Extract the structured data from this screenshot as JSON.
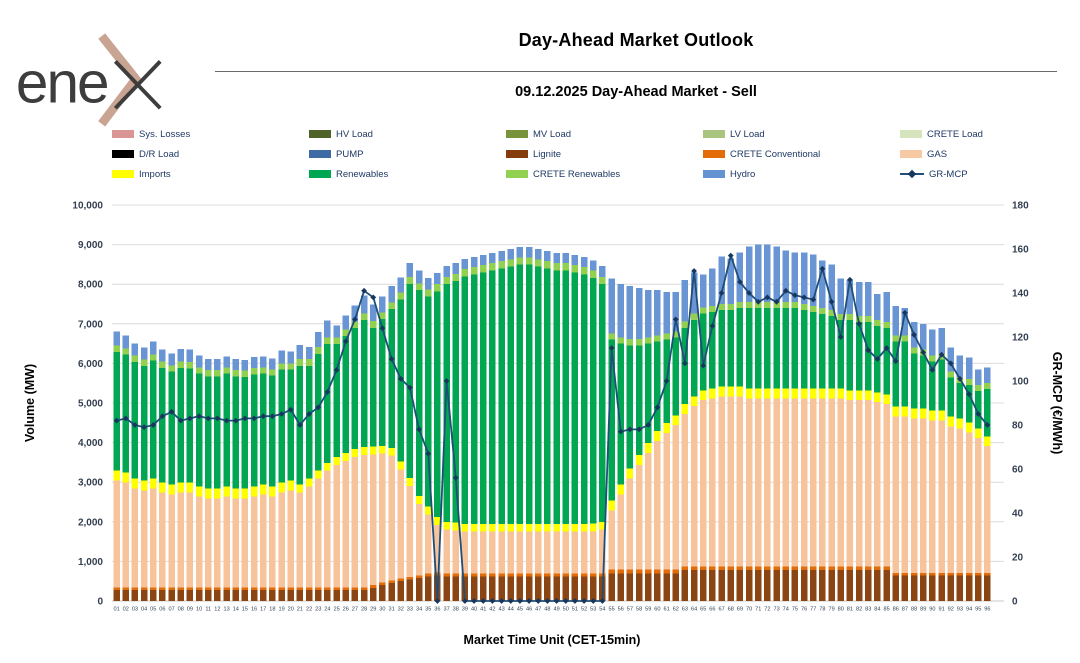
{
  "header": {
    "logo_text": "ene",
    "title": "Day-Ahead Market Outlook",
    "subtitle": "09.12.2025  Day-Ahead Market - Sell"
  },
  "legend": {
    "items": [
      {
        "label": "Sys. Losses",
        "color": "#D99694",
        "type": "box"
      },
      {
        "label": "HV Load",
        "color": "#4F6228",
        "type": "box"
      },
      {
        "label": "MV Load",
        "color": "#77933C",
        "type": "box"
      },
      {
        "label": "LV Load",
        "color": "#A9C47F",
        "type": "box"
      },
      {
        "label": "CRETE Load",
        "color": "#D6E4BD",
        "type": "box"
      },
      {
        "label": "D/R Load",
        "color": "#000000",
        "type": "box"
      },
      {
        "label": "PUMP",
        "color": "#3E6AA5",
        "type": "box"
      },
      {
        "label": "Lignite",
        "color": "#843C0C",
        "type": "box"
      },
      {
        "label": "CRETE Conventional",
        "color": "#E36C09",
        "type": "box"
      },
      {
        "label": "GAS",
        "color": "#F7C9A3",
        "type": "box"
      },
      {
        "label": "Imports",
        "color": "#FFFF00",
        "type": "box"
      },
      {
        "label": "Renewables",
        "color": "#00A651",
        "type": "box"
      },
      {
        "label": "CRETE Renewables",
        "color": "#92D050",
        "type": "box"
      },
      {
        "label": "Hydro",
        "color": "#6493D1",
        "type": "box"
      },
      {
        "label": "GR-MCP",
        "color": "#1F4E79",
        "type": "line"
      }
    ]
  },
  "chart_data": {
    "type": "stacked-bar+line",
    "x_label": "Market Time Unit (CET-15min)",
    "y_left": {
      "label": "Volume (MW)",
      "min": 0,
      "max": 10000,
      "step": 1000,
      "tick_labels": [
        "0",
        "1,000",
        "2,000",
        "3,000",
        "4,000",
        "5,000",
        "6,000",
        "7,000",
        "8,000",
        "9,000",
        "10,000"
      ]
    },
    "y_right": {
      "label": "GR-MCP (€/MWh)",
      "min": 0,
      "max": 180,
      "step": 20,
      "tick_labels": [
        "0",
        "20",
        "40",
        "60",
        "80",
        "100",
        "120",
        "140",
        "160",
        "180"
      ]
    },
    "grid": true,
    "categories": [
      "01",
      "02",
      "03",
      "04",
      "05",
      "06",
      "07",
      "08",
      "09",
      "10",
      "11",
      "12",
      "13",
      "14",
      "15",
      "16",
      "17",
      "18",
      "19",
      "20",
      "21",
      "22",
      "23",
      "24",
      "25",
      "26",
      "27",
      "28",
      "29",
      "30",
      "31",
      "32",
      "33",
      "34",
      "35",
      "36",
      "37",
      "38",
      "39",
      "40",
      "41",
      "42",
      "43",
      "44",
      "45",
      "46",
      "47",
      "48",
      "49",
      "50",
      "51",
      "52",
      "53",
      "54",
      "55",
      "56",
      "57",
      "58",
      "59",
      "60",
      "61",
      "62",
      "63",
      "64",
      "65",
      "66",
      "67",
      "68",
      "69",
      "70",
      "71",
      "72",
      "73",
      "74",
      "75",
      "76",
      "77",
      "78",
      "79",
      "80",
      "81",
      "82",
      "83",
      "84",
      "85",
      "86",
      "87",
      "88",
      "89",
      "90",
      "91",
      "92",
      "93",
      "94",
      "95",
      "96"
    ],
    "series": [
      {
        "name": "Lignite",
        "color": "#8B4513",
        "values": [
          280,
          280,
          280,
          280,
          280,
          280,
          280,
          280,
          280,
          280,
          280,
          280,
          280,
          280,
          280,
          280,
          280,
          280,
          280,
          280,
          280,
          280,
          280,
          280,
          280,
          280,
          280,
          280,
          330,
          400,
          450,
          500,
          540,
          580,
          620,
          650,
          620,
          620,
          620,
          620,
          620,
          620,
          620,
          620,
          620,
          620,
          620,
          620,
          620,
          620,
          620,
          620,
          620,
          620,
          700,
          700,
          700,
          700,
          700,
          700,
          700,
          700,
          780,
          780,
          780,
          780,
          780,
          780,
          780,
          780,
          780,
          780,
          780,
          780,
          780,
          780,
          780,
          780,
          780,
          780,
          780,
          780,
          780,
          780,
          780,
          640,
          640,
          640,
          640,
          640,
          640,
          640,
          640,
          640,
          640,
          640
        ]
      },
      {
        "name": "CRETE Conventional",
        "color": "#E36C09",
        "values": [
          60,
          60,
          60,
          60,
          60,
          60,
          60,
          60,
          60,
          60,
          60,
          60,
          60,
          60,
          60,
          60,
          60,
          60,
          60,
          60,
          60,
          60,
          60,
          60,
          60,
          60,
          60,
          60,
          70,
          70,
          70,
          70,
          70,
          70,
          70,
          70,
          80,
          80,
          80,
          80,
          80,
          80,
          80,
          80,
          80,
          80,
          80,
          80,
          80,
          80,
          80,
          80,
          80,
          80,
          90,
          90,
          90,
          90,
          90,
          90,
          90,
          90,
          90,
          90,
          90,
          90,
          90,
          90,
          90,
          90,
          90,
          90,
          90,
          90,
          90,
          90,
          90,
          90,
          90,
          90,
          90,
          90,
          90,
          90,
          90,
          70,
          70,
          70,
          70,
          70,
          70,
          70,
          70,
          70,
          70,
          70
        ]
      },
      {
        "name": "GAS",
        "color": "#F6C39B",
        "values": [
          2700,
          2650,
          2500,
          2450,
          2500,
          2400,
          2350,
          2400,
          2400,
          2300,
          2250,
          2250,
          2300,
          2250,
          2250,
          2300,
          2350,
          2300,
          2400,
          2450,
          2400,
          2550,
          2750,
          2950,
          3100,
          3200,
          3300,
          3350,
          3300,
          3250,
          3150,
          2750,
          2300,
          1800,
          1500,
          1200,
          1100,
          1080,
          1050,
          1050,
          1050,
          1050,
          1050,
          1050,
          1050,
          1050,
          1050,
          1050,
          1050,
          1050,
          1050,
          1050,
          1060,
          1100,
          1500,
          1900,
          2300,
          2650,
          2950,
          3250,
          3450,
          3650,
          3850,
          4050,
          4200,
          4250,
          4300,
          4300,
          4300,
          4250,
          4250,
          4250,
          4250,
          4250,
          4250,
          4250,
          4250,
          4250,
          4250,
          4250,
          4200,
          4200,
          4200,
          4150,
          4100,
          3950,
          3950,
          3900,
          3900,
          3850,
          3850,
          3700,
          3650,
          3550,
          3400,
          3200
        ]
      },
      {
        "name": "Imports",
        "color": "#FFFF00",
        "values": [
          250,
          250,
          250,
          250,
          250,
          250,
          250,
          250,
          250,
          250,
          250,
          250,
          250,
          250,
          250,
          250,
          250,
          250,
          250,
          250,
          200,
          200,
          200,
          200,
          200,
          200,
          200,
          200,
          200,
          200,
          200,
          200,
          200,
          200,
          200,
          200,
          200,
          200,
          200,
          200,
          200,
          200,
          200,
          200,
          200,
          200,
          200,
          200,
          200,
          200,
          200,
          200,
          200,
          200,
          250,
          250,
          250,
          250,
          250,
          250,
          250,
          250,
          250,
          250,
          250,
          250,
          250,
          250,
          250,
          250,
          250,
          250,
          250,
          250,
          250,
          250,
          250,
          250,
          250,
          250,
          250,
          250,
          250,
          250,
          250,
          250,
          250,
          250,
          250,
          250,
          250,
          250,
          250,
          250,
          250,
          250
        ]
      },
      {
        "name": "Renewables",
        "color": "#00A651",
        "values": [
          3000,
          2980,
          2950,
          2900,
          2980,
          2900,
          2850,
          2900,
          2880,
          2850,
          2830,
          2830,
          2850,
          2830,
          2820,
          2830,
          2800,
          2800,
          2850,
          2800,
          3000,
          2850,
          2950,
          3000,
          2850,
          2950,
          3050,
          3200,
          3000,
          3200,
          3500,
          4100,
          4900,
          5200,
          5300,
          5700,
          6000,
          6100,
          6250,
          6300,
          6350,
          6400,
          6450,
          6500,
          6550,
          6550,
          6500,
          6450,
          6400,
          6400,
          6350,
          6300,
          6200,
          6000,
          4060,
          3560,
          3110,
          2760,
          2510,
          2260,
          2110,
          1960,
          1930,
          1930,
          1940,
          1930,
          1930,
          1930,
          1980,
          2030,
          2030,
          2030,
          2030,
          2030,
          2030,
          1980,
          1930,
          1880,
          1830,
          1730,
          1780,
          1730,
          1730,
          1680,
          1680,
          1640,
          1640,
          1390,
          1340,
          1240,
          1290,
          990,
          890,
          940,
          940,
          1190
        ]
      },
      {
        "name": "CRETE Renewables",
        "color": "#92D050",
        "values": [
          160,
          160,
          160,
          160,
          160,
          160,
          160,
          160,
          160,
          160,
          160,
          160,
          160,
          160,
          160,
          160,
          160,
          160,
          160,
          160,
          170,
          170,
          170,
          170,
          170,
          170,
          170,
          170,
          170,
          170,
          170,
          170,
          170,
          170,
          170,
          180,
          180,
          180,
          180,
          180,
          180,
          180,
          180,
          180,
          180,
          180,
          180,
          180,
          180,
          180,
          180,
          180,
          180,
          180,
          160,
          160,
          160,
          160,
          160,
          160,
          160,
          160,
          160,
          160,
          150,
          150,
          150,
          150,
          150,
          150,
          150,
          150,
          150,
          150,
          150,
          150,
          150,
          150,
          150,
          150,
          150,
          150,
          150,
          150,
          150,
          150,
          150,
          150,
          150,
          150,
          150,
          150,
          150,
          150,
          150,
          150
        ]
      },
      {
        "name": "Hydro",
        "color": "#6A95D5",
        "values": [
          350,
          320,
          300,
          300,
          320,
          300,
          300,
          320,
          320,
          300,
          280,
          280,
          280,
          280,
          270,
          280,
          280,
          270,
          320,
          300,
          350,
          300,
          380,
          420,
          300,
          350,
          400,
          450,
          420,
          400,
          420,
          380,
          350,
          320,
          300,
          280,
          280,
          270,
          260,
          260,
          260,
          260,
          260,
          260,
          260,
          260,
          260,
          260,
          260,
          260,
          260,
          260,
          260,
          280,
          1390,
          1340,
          1340,
          1290,
          1190,
          1140,
          1040,
          990,
          1040,
          1040,
          840,
          950,
          1200,
          1150,
          1250,
          1400,
          1450,
          1450,
          1400,
          1300,
          1250,
          1300,
          1300,
          1200,
          1150,
          900,
          850,
          850,
          850,
          650,
          750,
          750,
          700,
          650,
          650,
          650,
          650,
          600,
          550,
          550,
          400,
          400
        ]
      }
    ],
    "line_series": {
      "name": "GR-MCP",
      "color": "#1F4E79",
      "marker_color": "#17375E",
      "axis": "right",
      "values": [
        82,
        83,
        80,
        79,
        80,
        84,
        86,
        82,
        83,
        84,
        83,
        83,
        82,
        82,
        83,
        83,
        84,
        84,
        85,
        87,
        80,
        85,
        88,
        95,
        105,
        118,
        128,
        141,
        138,
        124,
        110,
        101,
        97,
        78,
        67,
        0,
        100,
        56,
        0,
        0,
        0,
        0,
        0,
        0,
        0,
        0,
        0,
        0,
        0,
        0,
        0,
        0,
        0,
        0,
        115,
        77,
        78,
        78,
        80,
        88,
        100,
        128,
        108,
        150,
        107,
        125,
        140,
        157,
        145,
        140,
        136,
        138,
        136,
        141,
        139,
        138,
        137,
        151,
        136,
        120,
        146,
        126,
        114,
        110,
        115,
        109,
        131,
        121,
        113,
        105,
        112,
        108,
        101,
        94,
        85,
        80
      ]
    }
  }
}
